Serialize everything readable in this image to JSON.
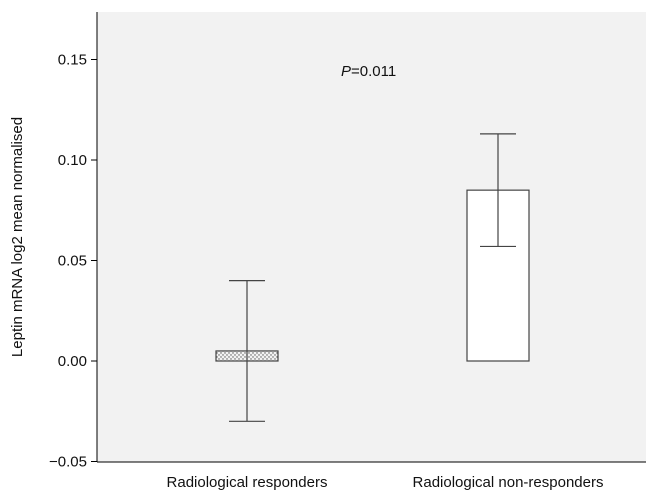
{
  "chart_data": {
    "type": "bar",
    "categories": [
      "Radiological responders",
      "Radiological non-responders"
    ],
    "values": [
      0.005,
      0.085
    ],
    "error_bars": [
      {
        "low": -0.03,
        "high": 0.04
      },
      {
        "low": 0.057,
        "high": 0.113
      }
    ],
    "ylabel": "Leptin mRNA log2 mean normalised",
    "xlabel": "",
    "ylim": [
      -0.05,
      0.17
    ],
    "yticks": [
      "0.15",
      "0.10",
      "0.05",
      "0.00",
      "−0.05"
    ],
    "ytick_values": [
      0.15,
      0.1,
      0.05,
      0.0,
      -0.05
    ],
    "annotation": {
      "p_label": "P",
      "p_value": "=0.011"
    },
    "bar_fills": [
      "dotted",
      "white"
    ],
    "grid": false
  }
}
